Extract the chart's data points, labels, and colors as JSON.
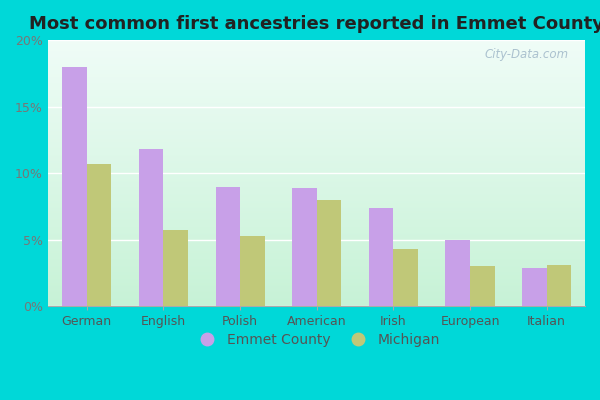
{
  "title": "Most common first ancestries reported in Emmet County",
  "categories": [
    "German",
    "English",
    "Polish",
    "American",
    "Irish",
    "European",
    "Italian"
  ],
  "emmet_county": [
    18.0,
    11.8,
    9.0,
    8.9,
    7.4,
    5.0,
    2.9
  ],
  "michigan": [
    10.7,
    5.7,
    5.3,
    8.0,
    4.3,
    3.0,
    3.1
  ],
  "emmet_color": "#c8a0e8",
  "michigan_color": "#c0c878",
  "background_outer": "#00d8d8",
  "background_inner": "#d8f0dc",
  "ylabel_ticks": [
    0,
    5,
    10,
    15,
    20
  ],
  "ylim": [
    0,
    20
  ],
  "bar_width": 0.32,
  "legend_emmet": "Emmet County",
  "legend_michigan": "Michigan",
  "title_fontsize": 13,
  "watermark": "City-Data.com"
}
